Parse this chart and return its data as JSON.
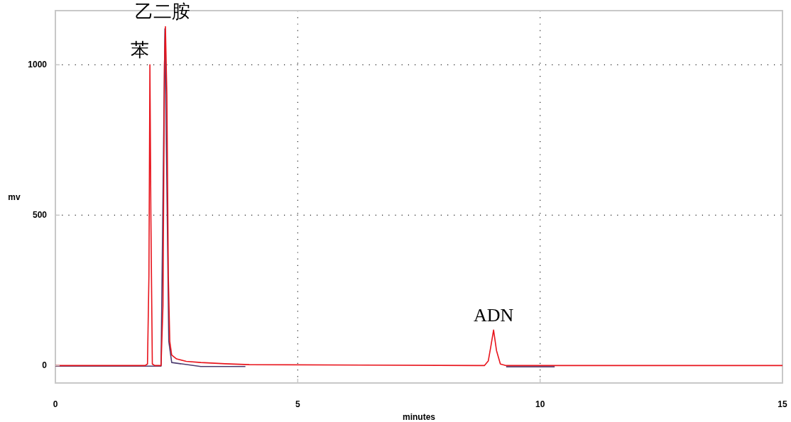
{
  "chart_data": {
    "type": "line",
    "xlabel": "minutes",
    "ylabel": "mv",
    "xlim": [
      0,
      15
    ],
    "ylim": [
      -58,
      1180
    ],
    "xticks": [
      0,
      5,
      10,
      15
    ],
    "yticks": [
      0,
      500,
      1000
    ],
    "grid": true,
    "line_style": "solid",
    "series": [
      {
        "color": "#4b3a6e",
        "x": [
          0,
          2.18,
          2.26,
          2.3,
          2.34,
          2.4,
          3.0,
          3.92,
          null,
          9.3,
          10.3
        ],
        "values": [
          -2,
          -2,
          1120,
          600,
          80,
          10,
          -3,
          -3,
          null,
          -4,
          -4
        ]
      },
      {
        "color": "#e8141c",
        "x": [
          0,
          1.85,
          1.9,
          1.93,
          1.95,
          1.97,
          2.0,
          2.05,
          2.18,
          2.22,
          2.25,
          2.27,
          2.3,
          2.33,
          2.36,
          2.4,
          2.5,
          2.7,
          3.0,
          3.5,
          4.0,
          8.7,
          8.85,
          8.93,
          8.98,
          9.04,
          9.1,
          9.18,
          9.3,
          10.5,
          15
        ],
        "values": [
          0,
          0,
          5,
          300,
          1000,
          500,
          5,
          0,
          0,
          200,
          1000,
          1127,
          900,
          300,
          80,
          35,
          22,
          14,
          10,
          6,
          3,
          0,
          0,
          15,
          60,
          118,
          50,
          5,
          0,
          0,
          0
        ]
      }
    ],
    "annotations": [
      {
        "text": "苯",
        "x": 1.95,
        "y": 1000
      },
      {
        "text": "乙二胺",
        "x": 2.27,
        "y": 1127
      },
      {
        "text": "ADN",
        "x": 9.04,
        "y": 118
      }
    ]
  }
}
